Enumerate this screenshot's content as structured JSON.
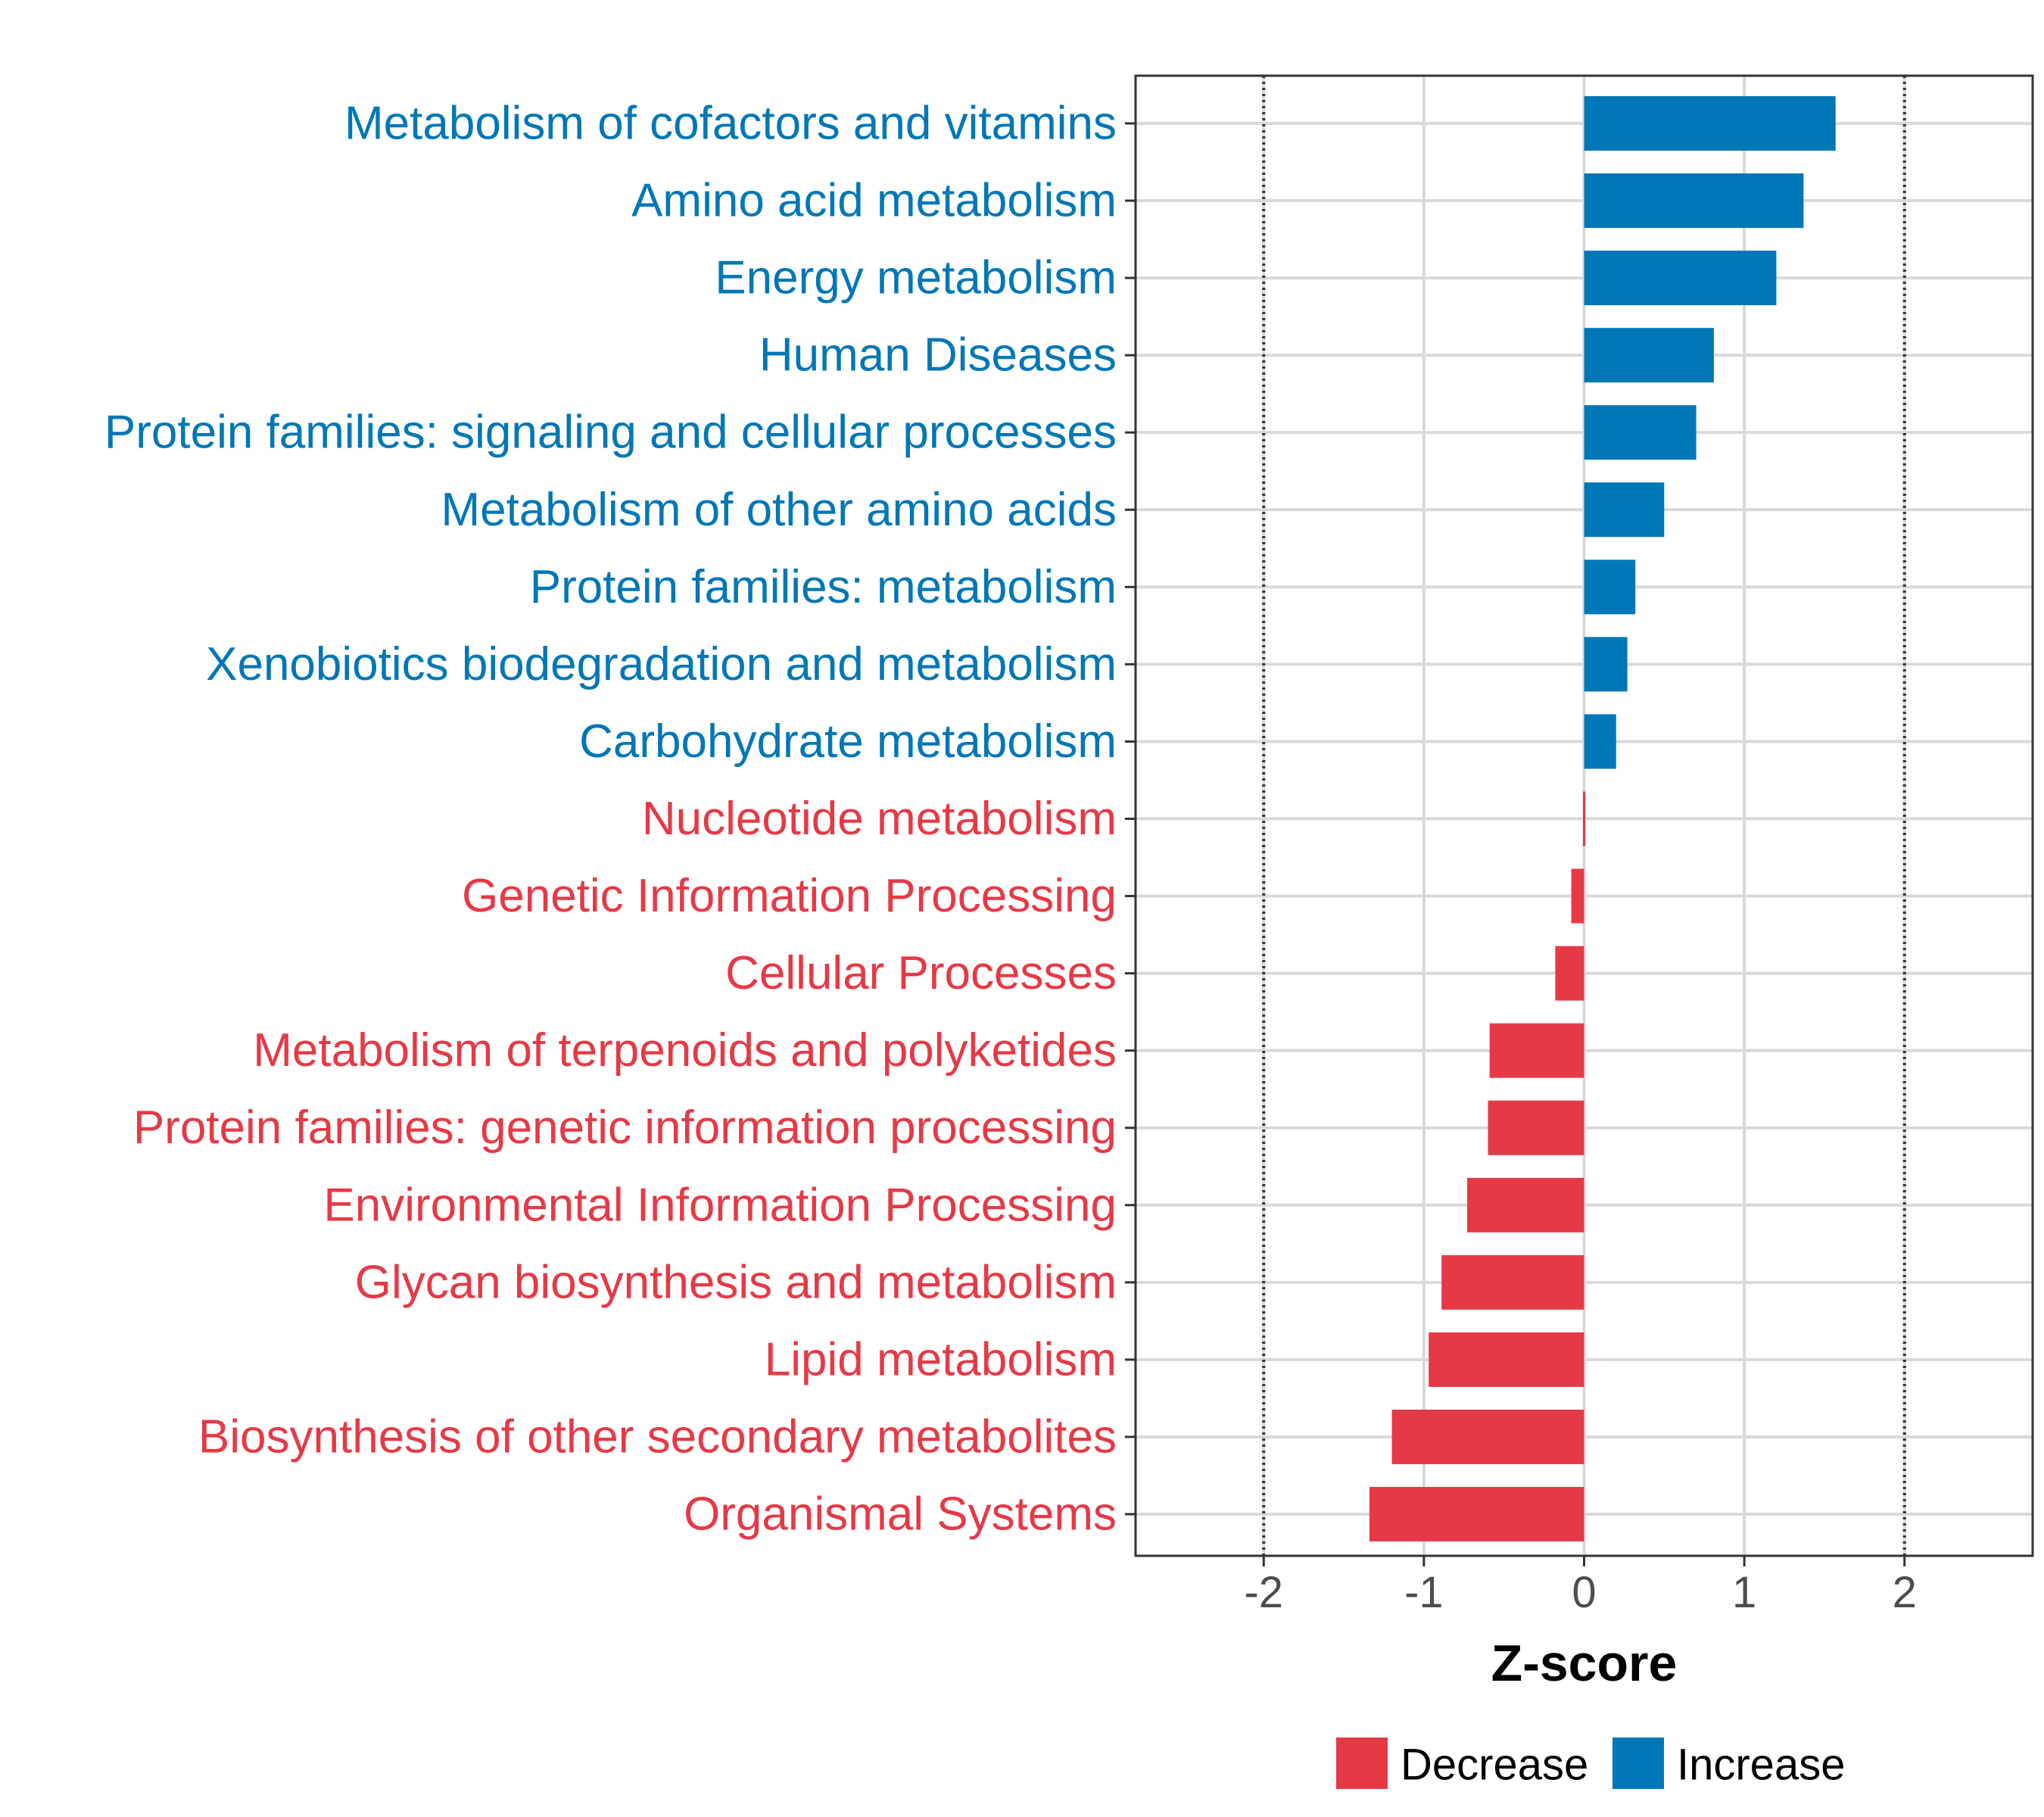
{
  "chart_data": {
    "type": "bar",
    "orientation": "horizontal",
    "xlabel": "Z-score",
    "ylabel": "",
    "xlim": [
      -2.8,
      2.8
    ],
    "xticks": [
      -2,
      -1,
      0,
      1,
      2
    ],
    "xtick_labels": [
      "-2",
      "-1",
      "0",
      "1",
      "2"
    ],
    "reference_lines": [
      -2,
      2
    ],
    "grid": true,
    "categories": [
      "Metabolism of cofactors and vitamins",
      "Amino acid metabolism",
      "Energy metabolism",
      "Human Diseases",
      "Protein families: signaling and cellular processes",
      "Metabolism of other amino acids",
      "Protein families: metabolism",
      "Xenobiotics biodegradation and metabolism",
      "Carbohydrate metabolism",
      "Nucleotide metabolism",
      "Genetic Information Processing",
      "Cellular Processes",
      "Metabolism of terpenoids and polyketides",
      "Protein families: genetic information processing",
      "Environmental Information Processing",
      "Glycan biosynthesis and metabolism",
      "Lipid metabolism",
      "Biosynthesis of other secondary metabolites",
      "Organismal Systems"
    ],
    "values": [
      1.57,
      1.37,
      1.2,
      0.81,
      0.7,
      0.5,
      0.32,
      0.27,
      0.2,
      -0.01,
      -0.08,
      -0.18,
      -0.59,
      -0.6,
      -0.73,
      -0.89,
      -0.97,
      -1.2,
      -1.34
    ],
    "groups": [
      "Increase",
      "Increase",
      "Increase",
      "Increase",
      "Increase",
      "Increase",
      "Increase",
      "Increase",
      "Increase",
      "Decrease",
      "Decrease",
      "Decrease",
      "Decrease",
      "Decrease",
      "Decrease",
      "Decrease",
      "Decrease",
      "Decrease",
      "Decrease"
    ],
    "legend": {
      "position": "bottom",
      "items": [
        {
          "label": "Decrease",
          "color": "#E63946"
        },
        {
          "label": "Increase",
          "color": "#0077B6"
        }
      ]
    }
  }
}
